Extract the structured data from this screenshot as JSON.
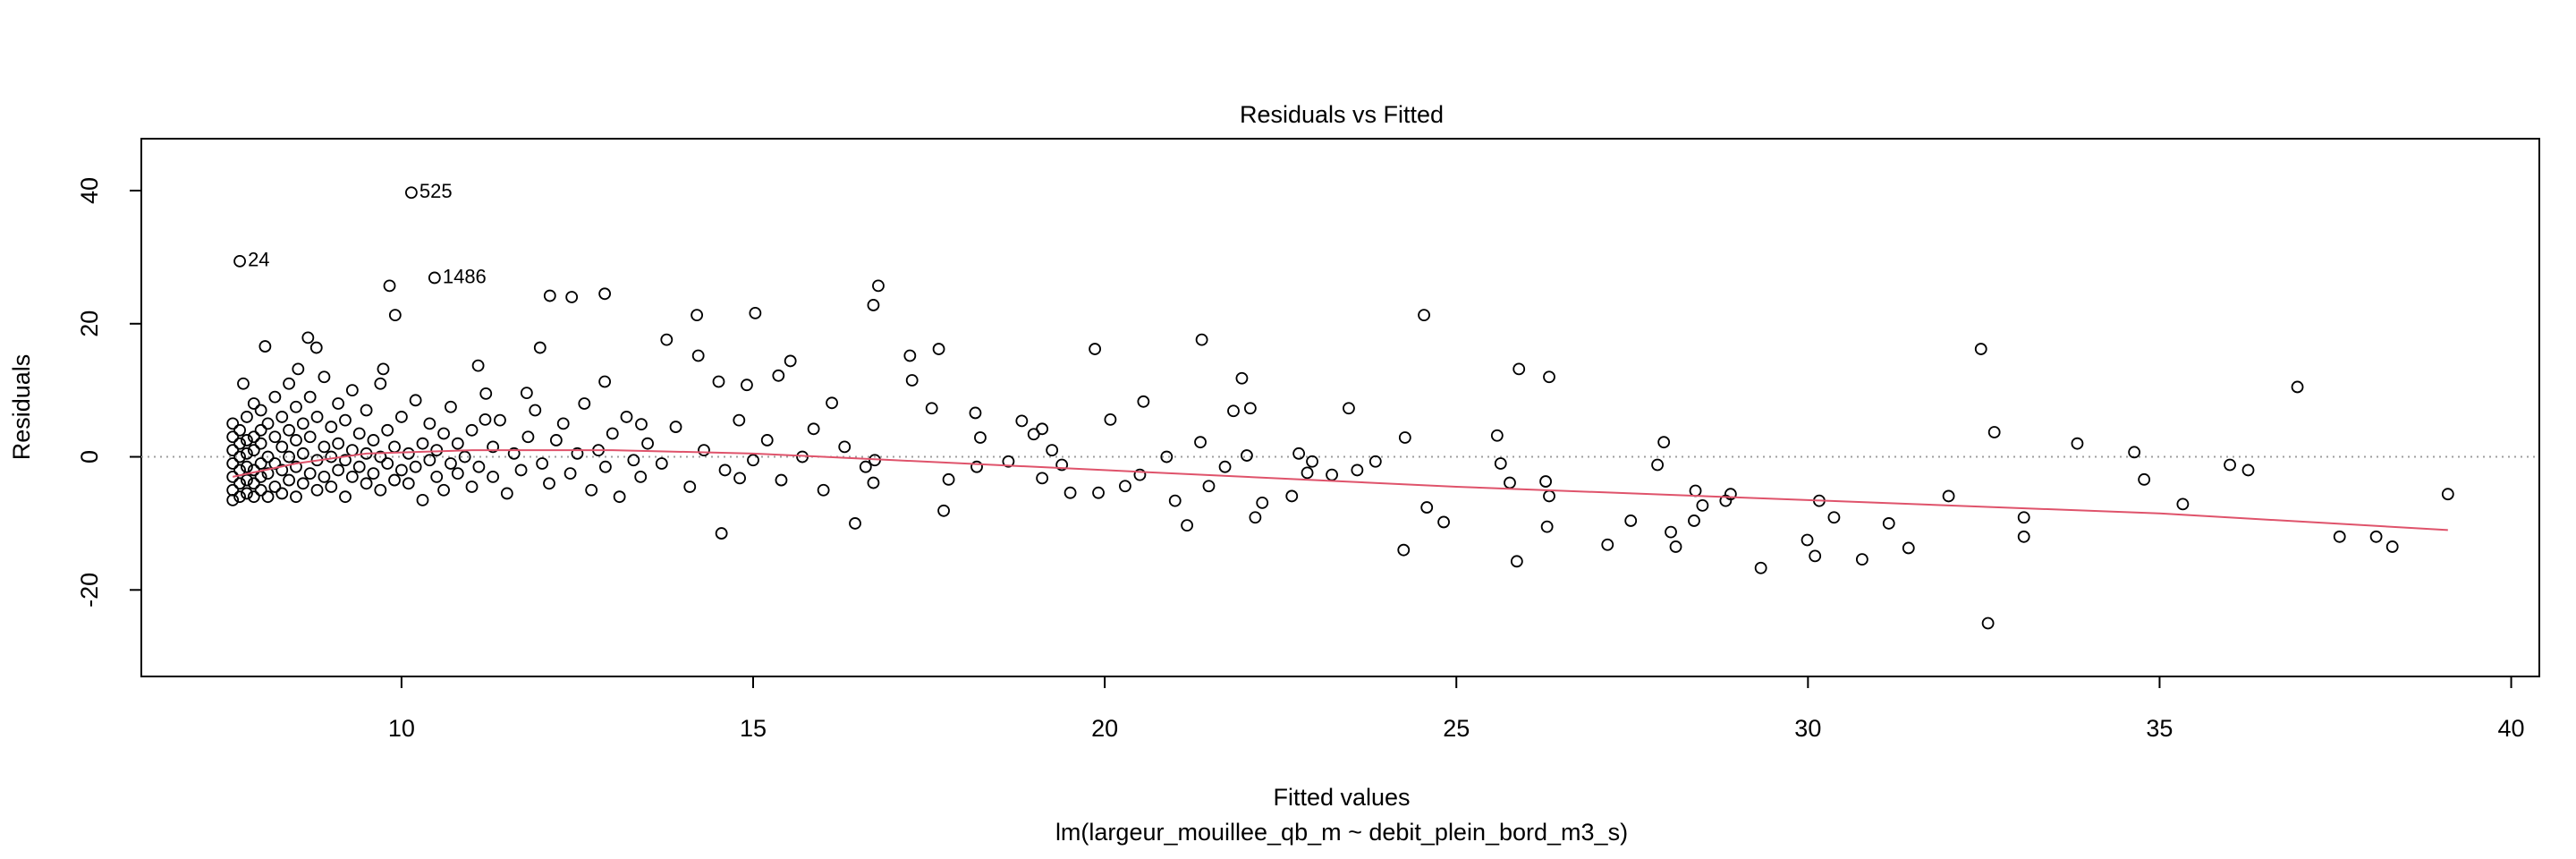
{
  "chart_data": {
    "type": "scatter",
    "title": "Residuals vs Fitted",
    "x_label": "Fitted values",
    "y_label": "Residuals",
    "subtitle": "lm(largeur_mouillee_qb_m ~ debit_plein_bord_m3_s)",
    "color": "#000000",
    "xlim": [
      6.3,
      40.4
    ],
    "ylim": [
      -33,
      47.8
    ],
    "xticks": [
      10,
      15,
      20,
      25,
      30,
      35,
      40
    ],
    "yticks": [
      -20,
      0,
      20,
      40
    ],
    "hline": 0,
    "x": [
      24.54,
      21.38,
      19.86,
      32.46,
      25.89,
      26.32,
      36.96,
      32.65,
      33.83,
      34.64,
      34.78,
      36.0,
      36.26,
      35.33,
      37.56,
      38.08,
      38.31,
      39.1,
      32.56,
      33.07,
      33.07,
      32.0,
      31.43,
      31.15,
      30.77,
      29.99,
      30.1,
      29.33,
      30.37,
      30.16,
      28.9,
      28.83,
      28.4,
      28.5,
      28.38,
      28.05,
      27.95,
      27.86,
      28.12,
      27.48,
      27.15,
      25.76,
      26.27,
      26.32,
      25.63,
      25.58,
      25.86,
      26.29,
      24.82,
      24.58,
      24.25,
      24.27,
      23.47,
      23.85,
      23.59,
      23.23,
      22.95,
      22.88,
      22.76,
      22.66,
      22.24,
      22.14,
      22.07,
      21.95,
      22.02,
      21.71,
      21.83,
      21.48,
      21.36,
      21.17,
      21.0,
      20.88,
      20.55,
      20.5,
      20.29,
      20.08,
      19.91,
      19.51,
      19.39,
      19.25,
      19.11,
      18.99,
      18.82,
      19.11,
      18.63,
      18.23,
      18.18,
      18.16,
      17.78,
      17.71,
      17.64,
      17.54,
      17.26,
      17.23,
      16.78,
      16.71,
      16.71,
      16.73,
      16.45,
      16.12,
      15.86,
      15.53,
      15.36,
      15.03,
      14.91,
      14.81,
      14.55,
      14.51,
      14.22,
      14.2,
      13.77,
      13.41,
      12.89,
      12.89,
      12.42,
      12.11,
      11.78,
      11.97,
      11.19,
      11.09,
      10.47,
      10.14,
      7.7,
      9.91,
      9.83,
      9.74,
      8.79,
      8.06,
      8.67,
      7.75,
      8.53,
      7.6,
      7.6,
      7.6,
      7.6,
      7.6,
      7.6,
      7.6,
      7.7,
      7.7,
      7.7,
      7.7,
      7.7,
      7.7,
      7.8,
      7.8,
      7.8,
      7.8,
      7.8,
      7.8,
      7.9,
      7.9,
      7.9,
      7.9,
      7.9,
      7.9,
      8.0,
      8.0,
      8.0,
      8.0,
      8.0,
      8.0,
      8.1,
      8.1,
      8.1,
      8.1,
      8.2,
      8.2,
      8.2,
      8.2,
      8.3,
      8.3,
      8.3,
      8.3,
      8.4,
      8.4,
      8.4,
      8.4,
      8.5,
      8.5,
      8.5,
      8.5,
      8.6,
      8.6,
      8.6,
      8.7,
      8.7,
      8.7,
      8.8,
      8.8,
      8.8,
      8.9,
      8.9,
      8.9,
      9.0,
      9.0,
      9.0,
      9.1,
      9.1,
      9.1,
      9.2,
      9.2,
      9.2,
      9.3,
      9.3,
      9.3,
      9.4,
      9.4,
      9.5,
      9.5,
      9.5,
      9.6,
      9.6,
      9.7,
      9.7,
      9.7,
      9.8,
      9.8,
      9.9,
      9.9,
      10.0,
      10.0,
      10.1,
      10.1,
      10.2,
      10.2,
      10.3,
      10.3,
      10.4,
      10.4,
      10.5,
      10.5,
      10.6,
      10.6,
      10.7,
      10.7,
      10.8,
      10.8,
      10.9,
      11.0,
      11.0,
      11.1,
      11.2,
      11.3,
      11.3,
      11.4,
      11.5,
      11.6,
      11.7,
      11.8,
      11.9,
      12.0,
      12.1,
      12.2,
      12.3,
      12.4,
      12.5,
      12.6,
      12.7,
      12.8,
      12.9,
      13.0,
      13.1,
      13.2,
      13.3,
      13.4,
      13.5,
      13.7,
      13.9,
      14.1,
      14.3,
      14.6,
      14.8,
      15.0,
      15.2,
      15.4,
      15.7,
      16.0,
      16.3,
      16.6
    ],
    "values": [
      21.3,
      17.6,
      16.2,
      16.2,
      13.2,
      12.0,
      10.5,
      3.7,
      2.0,
      0.7,
      -3.4,
      -1.2,
      -2.0,
      -7.1,
      -12.0,
      -12.0,
      -13.5,
      -5.6,
      -25.0,
      -9.1,
      -12.0,
      -5.9,
      -13.7,
      -10.0,
      -15.4,
      -12.5,
      -14.9,
      -16.7,
      -9.1,
      -6.6,
      -5.6,
      -6.6,
      -5.1,
      -7.3,
      -9.6,
      -11.3,
      2.2,
      -1.2,
      -13.5,
      -9.6,
      -13.2,
      -3.9,
      -3.7,
      -5.9,
      -1.0,
      3.2,
      -15.7,
      -10.5,
      -9.8,
      -7.6,
      -14.0,
      2.9,
      7.3,
      -0.7,
      -2.0,
      -2.7,
      -0.7,
      -2.4,
      0.5,
      -5.9,
      -6.9,
      -9.1,
      7.3,
      11.8,
      0.2,
      -1.5,
      6.9,
      -4.4,
      2.2,
      -10.3,
      -6.6,
      0,
      8.3,
      -2.7,
      -4.4,
      5.6,
      -5.4,
      -5.4,
      -1.2,
      1.0,
      4.2,
      3.4,
      5.4,
      -3.2,
      -0.7,
      2.9,
      -1.5,
      6.6,
      -3.4,
      -8.1,
      16.2,
      7.3,
      11.5,
      15.2,
      25.7,
      22.8,
      -3.9,
      -0.5,
      -10.0,
      8.1,
      4.2,
      14.4,
      12.2,
      21.6,
      10.8,
      -3.2,
      -11.5,
      11.3,
      15.2,
      21.3,
      17.6,
      4.9,
      11.3,
      24.5,
      24.0,
      24.2,
      9.6,
      16.4,
      5.6,
      13.7,
      26.9,
      39.7,
      29.4,
      21.3,
      25.7,
      13.2,
      16.4,
      16.6,
      17.9,
      11.0,
      13.2,
      -6.5,
      -5,
      -3,
      -1,
      1,
      3,
      5,
      -6,
      -4,
      -2,
      0,
      2,
      4,
      -5.5,
      -3.5,
      -1.5,
      0.5,
      2.5,
      6,
      -6,
      -4,
      -2,
      1,
      3,
      8,
      -5,
      -3,
      -1,
      2,
      4,
      7,
      -6,
      -2.5,
      0,
      5,
      -4.5,
      -1,
      3,
      9,
      -5.5,
      -2,
      1.5,
      6,
      -3.5,
      0,
      4,
      11,
      -6,
      -1.5,
      2.5,
      7.5,
      -4,
      0.5,
      5,
      -2.5,
      3,
      9,
      -5,
      -0.5,
      6,
      -3,
      1.5,
      12,
      -4.5,
      0,
      4.5,
      -2,
      2,
      8,
      -6,
      -0.5,
      5.5,
      -3,
      1,
      10,
      -1.5,
      3.5,
      -4,
      0.5,
      7,
      -2.5,
      2.5,
      -5,
      0,
      11,
      -1,
      4,
      -3.5,
      1.5,
      -2,
      6,
      -4,
      0.5,
      -1.5,
      8.5,
      -6.5,
      2,
      -0.5,
      5,
      -3,
      1,
      -5,
      3.5,
      -1,
      7.5,
      -2.5,
      2,
      0,
      -4.5,
      4,
      -1.5,
      9.5,
      -3,
      1.5,
      5.5,
      -5.5,
      0.5,
      -2,
      3,
      7,
      -1,
      -4,
      2.5,
      5,
      -2.5,
      0.5,
      8,
      -5,
      1,
      -1.5,
      3.5,
      -6,
      6,
      -0.5,
      -3,
      2,
      -1,
      4.5,
      -4.5,
      1,
      -2,
      5.5,
      -0.5,
      2.5,
      -3.5,
      0,
      -5,
      1.5,
      -1.5
    ],
    "point_labels": [
      {
        "x": 10.14,
        "y": 39.7,
        "label": "525"
      },
      {
        "x": 7.7,
        "y": 29.4,
        "label": "24"
      },
      {
        "x": 10.47,
        "y": 26.9,
        "label": "1486"
      }
    ],
    "smooth": {
      "color": "#df536b",
      "x": [
        7.6,
        8.5,
        9.5,
        11,
        13,
        15,
        17,
        20,
        25,
        30,
        35,
        39.1
      ],
      "values": [
        -3,
        -1,
        0.5,
        1,
        1,
        0.5,
        -0.5,
        -2,
        -4.5,
        -6.5,
        -8.5,
        -11
      ]
    }
  }
}
